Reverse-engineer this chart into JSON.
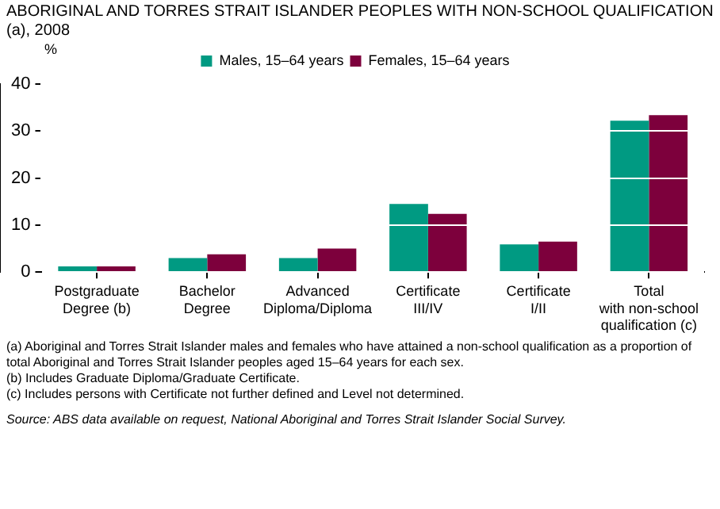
{
  "chart_data": {
    "type": "bar",
    "title": "ABORIGINAL AND TORRES STRAIT ISLANDER PEOPLES WITH NON-SCHOOL QUALIFICATION (a), 2008",
    "ylabel": "%",
    "categories": [
      "Postgraduate\nDegree (b)",
      "Bachelor\nDegree",
      "Advanced\nDiploma/Diploma",
      "Certificate\nIII/IV",
      "Certificate\nI/II",
      "Total\nwith non-school\nqualification (c)"
    ],
    "series": [
      {
        "name": "Males, 15–64 years",
        "color": "#009a82",
        "values": [
          1.2,
          3.0,
          3.0,
          14.5,
          5.9,
          32.2
        ]
      },
      {
        "name": "Females, 15–64 years",
        "color": "#7d003c",
        "values": [
          1.2,
          3.8,
          5.0,
          12.4,
          6.5,
          33.4
        ]
      }
    ],
    "ylim": [
      0,
      40
    ],
    "yticks": [
      0,
      10,
      20,
      30,
      40
    ],
    "grid": "y",
    "legend": "top",
    "annotations": [
      "(a) Aboriginal and Torres Strait Islander males and females who have attained a non-school qualification as a proportion of total Aboriginal and Torres Strait Islander peoples aged 15–64 years for each sex.",
      "(b) Includes Graduate Diploma/Graduate Certificate.",
      "(c) Includes persons with Certificate not further defined and Level not determined.",
      "Source: ABS data available on request, National Aboriginal and Torres Strait Islander Social Survey."
    ]
  }
}
